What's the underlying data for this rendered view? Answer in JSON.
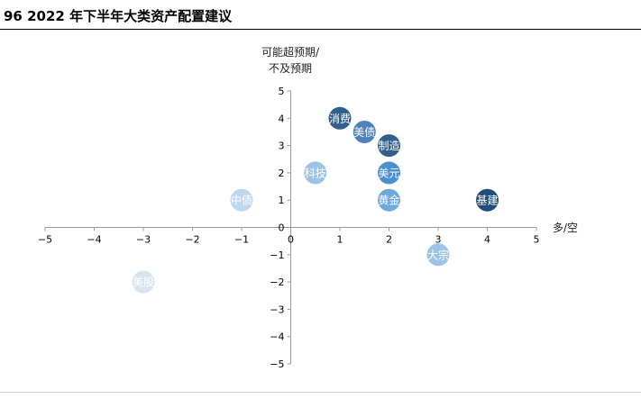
{
  "figure": {
    "title": "96 2022 年下半年大类资产配置建议"
  },
  "chart_data": {
    "type": "scatter",
    "title": "",
    "xlabel": "多/空",
    "ylabel": [
      "可能超预期/",
      "不及预期"
    ],
    "xlim": [
      -5,
      5
    ],
    "ylim": [
      -5,
      5
    ],
    "xticks": [
      -5,
      -4,
      -3,
      -2,
      -1,
      0,
      1,
      2,
      3,
      4,
      5
    ],
    "yticks": [
      5,
      4,
      3,
      2,
      1,
      0,
      -1,
      -2,
      -3,
      -4,
      -5
    ],
    "grid": false,
    "points": [
      {
        "label": "消费",
        "x": 1,
        "y": 4,
        "color": "#2f5f8a"
      },
      {
        "label": "美债",
        "x": 1.5,
        "y": 3.5,
        "color": "#4f81bd"
      },
      {
        "label": "制造",
        "x": 2,
        "y": 3,
        "color": "#2f5f8a"
      },
      {
        "label": "科技",
        "x": 0.5,
        "y": 2,
        "color": "#9dc3e6"
      },
      {
        "label": "美元",
        "x": 2,
        "y": 2,
        "color": "#4a90d0"
      },
      {
        "label": "中债",
        "x": -1,
        "y": 1,
        "color": "#bdd7ee"
      },
      {
        "label": "黄金",
        "x": 2,
        "y": 1,
        "color": "#6fa8dc"
      },
      {
        "label": "基建",
        "x": 4,
        "y": 1,
        "color": "#1f4e79"
      },
      {
        "label": "大宗",
        "x": 3,
        "y": -1,
        "color": "#9dc3e6"
      },
      {
        "label": "美股",
        "x": -3,
        "y": -2,
        "color": "#d6e4f0"
      }
    ]
  }
}
